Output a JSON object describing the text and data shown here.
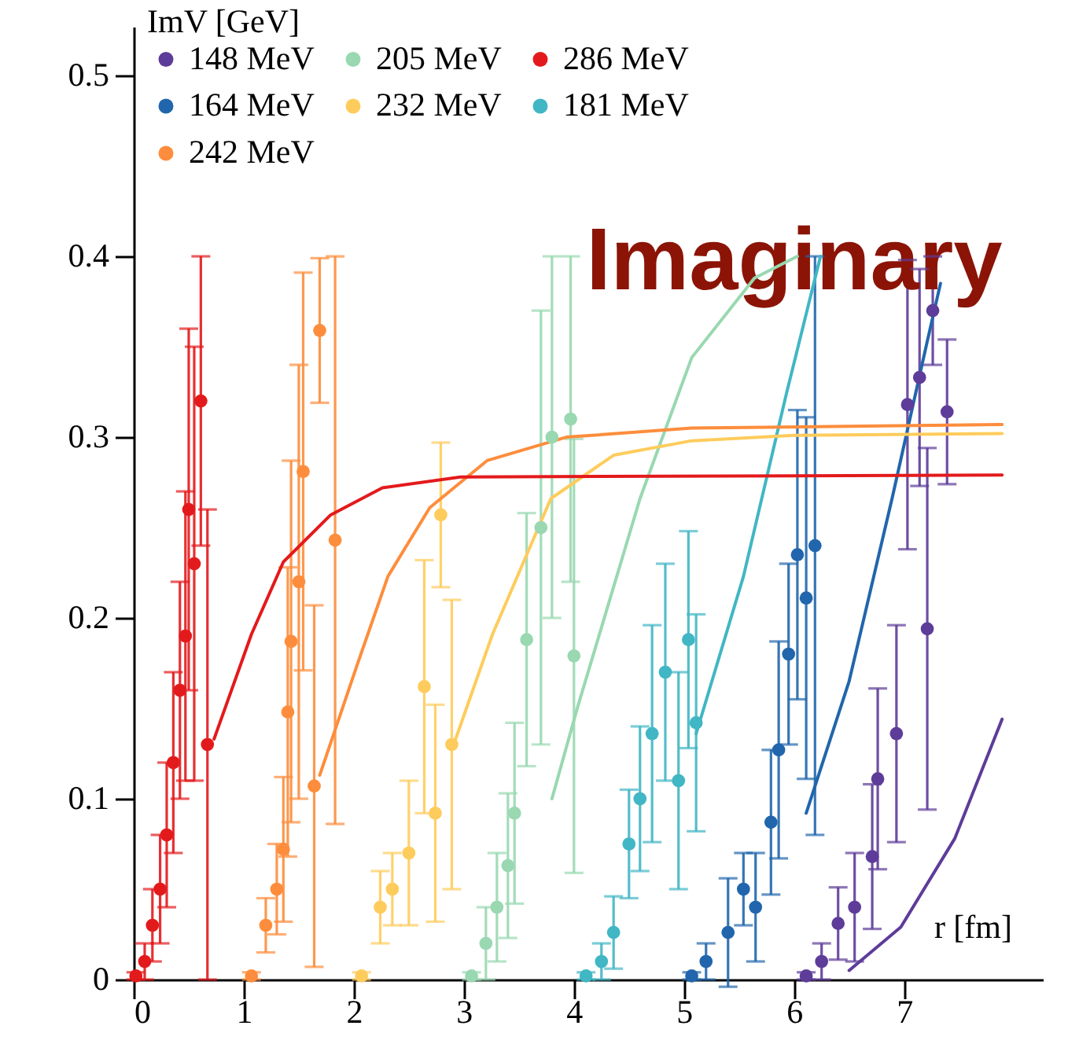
{
  "chart_data": {
    "type": "scatter",
    "xlabel": "r [fm]",
    "ylabel": "ImV [GeV]",
    "xlim": [
      0,
      8.26
    ],
    "ylim": [
      0,
      0.527
    ],
    "xticks": [
      0,
      1,
      2,
      3,
      4,
      5,
      6,
      7
    ],
    "yticks": [
      0,
      0.1,
      0.2,
      0.3,
      0.4,
      0.5
    ],
    "grid": false,
    "legend": "top left",
    "marker": "circle",
    "annotations": [
      "Imaginary"
    ],
    "series": [
      {
        "name": "148 MeV",
        "color": "#5e3c99",
        "x": [
          6.11,
          6.25,
          6.4,
          6.55,
          6.71,
          6.76,
          6.93,
          7.03,
          7.14,
          7.21,
          7.26,
          7.39
        ],
        "values": [
          0.002,
          0.01,
          0.031,
          0.04,
          0.068,
          0.111,
          0.136,
          0.318,
          0.333,
          0.194,
          0.37,
          0.314
        ],
        "errors": [
          0.002,
          0.01,
          0.02,
          0.03,
          0.04,
          0.05,
          0.06,
          0.08,
          0.06,
          0.1,
          0.03,
          0.04
        ]
      },
      {
        "name": "164 MeV",
        "color": "#2166ac",
        "x": [
          5.07,
          5.2,
          5.4,
          5.54,
          5.65,
          5.79,
          5.86,
          5.95,
          6.03,
          6.11,
          6.19
        ],
        "values": [
          0.002,
          0.01,
          0.026,
          0.05,
          0.04,
          0.087,
          0.127,
          0.18,
          0.235,
          0.211,
          0.24
        ],
        "errors": [
          0.002,
          0.01,
          0.03,
          0.02,
          0.03,
          0.04,
          0.06,
          0.05,
          0.08,
          0.1,
          0.16
        ]
      },
      {
        "name": "181 MeV",
        "color": "#41b6c4",
        "x": [
          4.11,
          4.25,
          4.36,
          4.5,
          4.6,
          4.71,
          4.83,
          4.95,
          5.04,
          5.11
        ],
        "values": [
          0.002,
          0.01,
          0.026,
          0.075,
          0.1,
          0.136,
          0.17,
          0.11,
          0.188,
          0.142
        ],
        "errors": [
          0.002,
          0.01,
          0.02,
          0.03,
          0.04,
          0.06,
          0.06,
          0.06,
          0.06,
          0.06
        ]
      },
      {
        "name": "205 MeV",
        "color": "#99d8b0",
        "x": [
          3.07,
          3.2,
          3.3,
          3.4,
          3.46,
          3.57,
          3.7,
          3.8,
          3.97,
          4.0
        ],
        "values": [
          0.002,
          0.02,
          0.04,
          0.063,
          0.092,
          0.188,
          0.25,
          0.3,
          0.31,
          0.179
        ],
        "errors": [
          0.002,
          0.02,
          0.03,
          0.04,
          0.05,
          0.07,
          0.12,
          0.1,
          0.09,
          0.12
        ]
      },
      {
        "name": "232 MeV",
        "color": "#fecc5c",
        "x": [
          2.07,
          2.24,
          2.35,
          2.5,
          2.64,
          2.74,
          2.79,
          2.89
        ],
        "values": [
          0.002,
          0.04,
          0.05,
          0.07,
          0.162,
          0.092,
          0.257,
          0.13
        ],
        "errors": [
          0.002,
          0.02,
          0.02,
          0.04,
          0.07,
          0.06,
          0.04,
          0.08
        ]
      },
      {
        "name": "242 MeV",
        "color": "#fd8d3c",
        "x": [
          1.07,
          1.2,
          1.3,
          1.36,
          1.4,
          1.43,
          1.5,
          1.54,
          1.64,
          1.69,
          1.83
        ],
        "values": [
          0.002,
          0.03,
          0.05,
          0.072,
          0.148,
          0.187,
          0.22,
          0.281,
          0.107,
          0.359,
          0.243
        ],
        "errors": [
          0.002,
          0.015,
          0.025,
          0.04,
          0.08,
          0.1,
          0.12,
          0.11,
          0.1,
          0.04,
          0.157
        ]
      },
      {
        "name": "286 MeV",
        "color": "#e31a1c",
        "x": [
          0.02,
          0.1,
          0.17,
          0.24,
          0.3,
          0.36,
          0.42,
          0.47,
          0.5,
          0.55,
          0.61,
          0.67
        ],
        "values": [
          0.002,
          0.01,
          0.03,
          0.05,
          0.08,
          0.12,
          0.16,
          0.19,
          0.26,
          0.23,
          0.32,
          0.13
        ],
        "errors": [
          0.002,
          0.01,
          0.02,
          0.03,
          0.04,
          0.05,
          0.06,
          0.08,
          0.1,
          0.12,
          0.08,
          0.13
        ]
      },
      {
        "type": "line",
        "marker": "none",
        "color": "#5e3c99",
        "x": [
          6.5,
          6.97,
          7.46,
          7.89
        ],
        "values": [
          0.005,
          0.029,
          0.078,
          0.144
        ]
      },
      {
        "type": "line",
        "marker": "none",
        "color": "#2166ac",
        "x": [
          6.11,
          6.5,
          6.89,
          7.21,
          7.33
        ],
        "values": [
          0.092,
          0.165,
          0.266,
          0.353,
          0.385
        ]
      },
      {
        "type": "line",
        "marker": "none",
        "color": "#41b6c4",
        "x": [
          5.11,
          5.54,
          5.93,
          6.24
        ],
        "values": [
          0.136,
          0.223,
          0.324,
          0.4
        ]
      },
      {
        "type": "line",
        "marker": "none",
        "color": "#99d8b0",
        "x": [
          3.8,
          4.03,
          4.6,
          5.07,
          5.64,
          6.03
        ],
        "values": [
          0.1,
          0.15,
          0.266,
          0.344,
          0.388,
          0.4
        ]
      },
      {
        "type": "line",
        "marker": "none",
        "color": "#fecc5c",
        "x": [
          2.89,
          3.26,
          3.79,
          4.36,
          5.07,
          6.0,
          7.89
        ],
        "values": [
          0.127,
          0.191,
          0.266,
          0.29,
          0.298,
          0.301,
          0.302
        ]
      },
      {
        "type": "line",
        "marker": "none",
        "color": "#fd8d3c",
        "x": [
          1.69,
          2.03,
          2.31,
          2.69,
          3.21,
          3.93,
          5.07,
          7.89
        ],
        "values": [
          0.113,
          0.174,
          0.223,
          0.261,
          0.287,
          0.3,
          0.305,
          0.307
        ]
      },
      {
        "type": "line",
        "marker": "none",
        "color": "#e31a1c",
        "x": [
          0.73,
          1.07,
          1.36,
          1.79,
          2.26,
          2.97,
          7.89
        ],
        "values": [
          0.133,
          0.191,
          0.231,
          0.257,
          0.272,
          0.278,
          0.279
        ]
      }
    ]
  }
}
